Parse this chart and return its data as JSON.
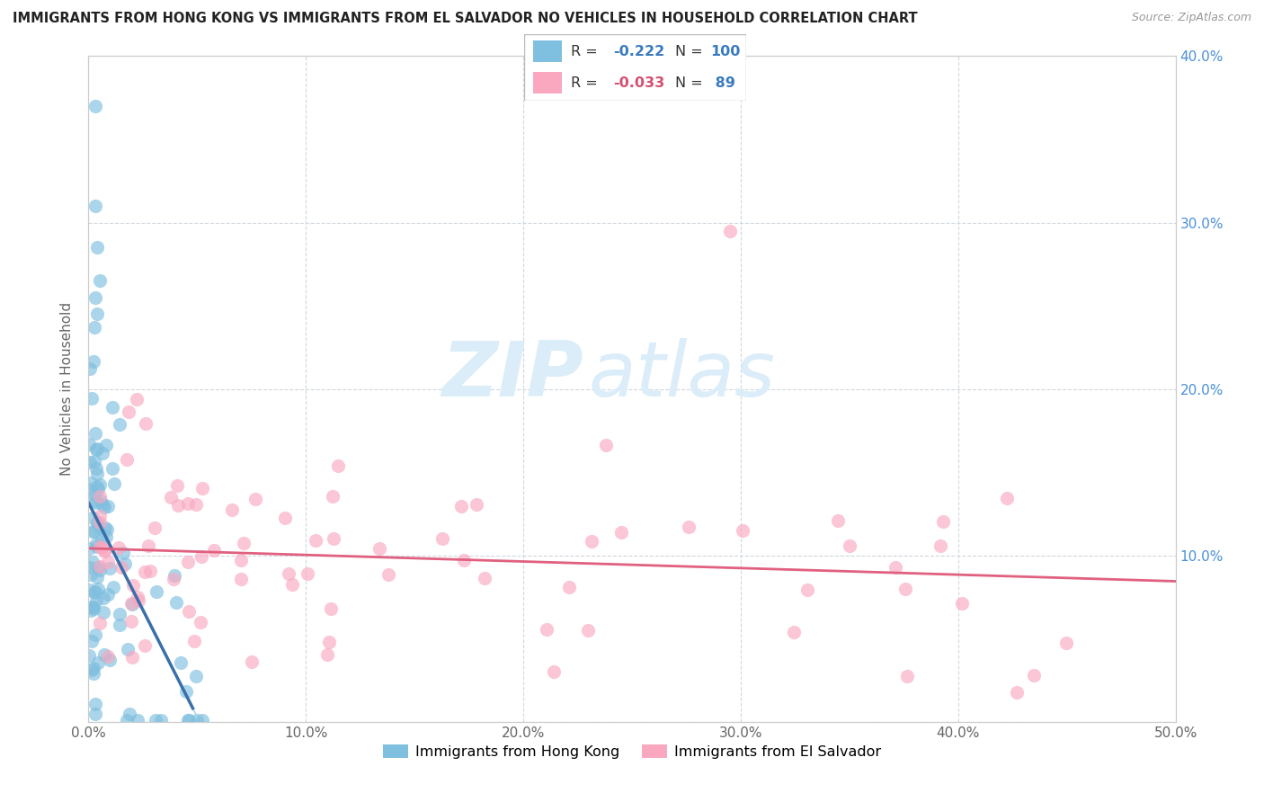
{
  "title": "IMMIGRANTS FROM HONG KONG VS IMMIGRANTS FROM EL SALVADOR NO VEHICLES IN HOUSEHOLD CORRELATION CHART",
  "source": "Source: ZipAtlas.com",
  "ylabel": "No Vehicles in Household",
  "xlim": [
    0.0,
    0.5
  ],
  "ylim": [
    0.0,
    0.4
  ],
  "xticks": [
    0.0,
    0.1,
    0.2,
    0.3,
    0.4,
    0.5
  ],
  "yticks": [
    0.0,
    0.1,
    0.2,
    0.3,
    0.4
  ],
  "legend1_label": "Immigrants from Hong Kong",
  "legend2_label": "Immigrants from El Salvador",
  "r1": "-0.222",
  "n1": "100",
  "r2": "-0.033",
  "n2": "89",
  "color1": "#7fbfdf",
  "color2": "#f9a8c0",
  "color1_line": "#3a6faa",
  "color2_line": "#e06080",
  "watermark_color": "#daedf8",
  "grid_color": "#d0d8e0",
  "spine_color": "#cccccc",
  "title_color": "#222222",
  "source_color": "#999999",
  "tick_color_right": "#4a90d9",
  "tick_color_left": "#888888"
}
